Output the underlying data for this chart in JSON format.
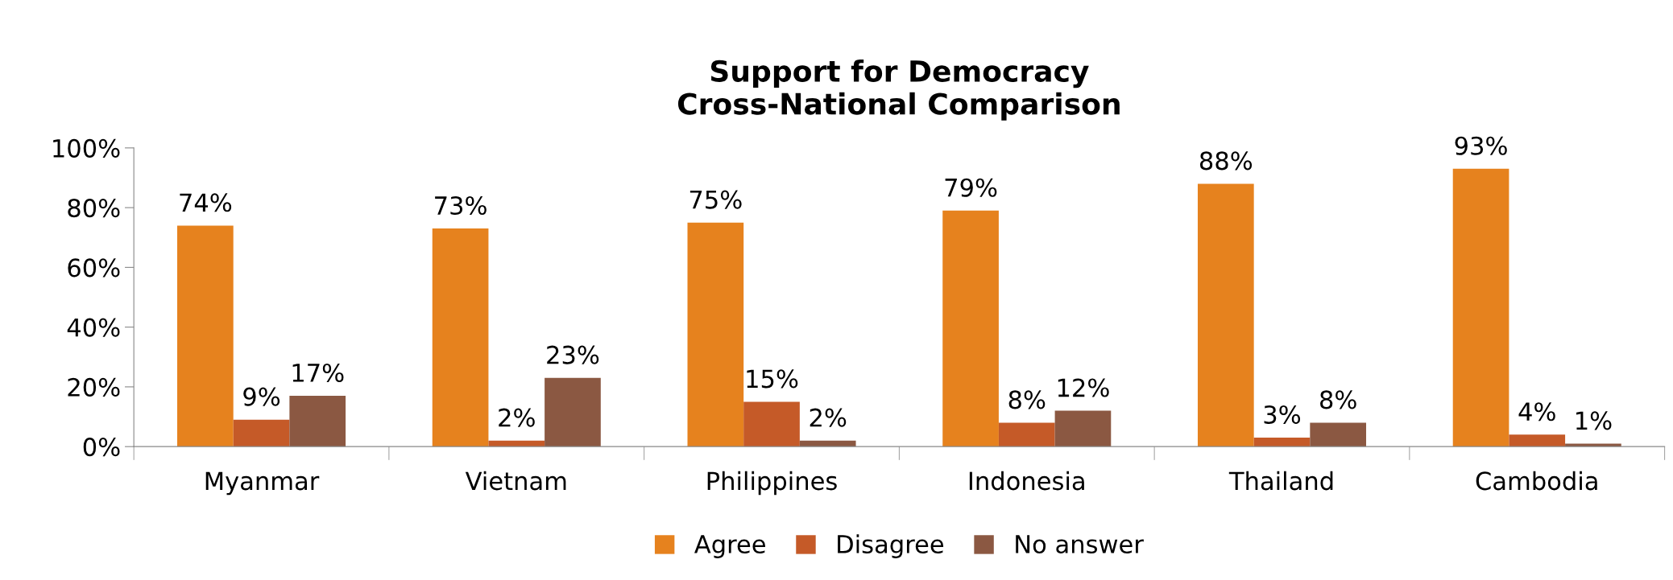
{
  "chart_data": {
    "type": "bar",
    "title": "Support for Democracy\nCross-National Comparison",
    "categories": [
      "Myanmar",
      "Vietnam",
      "Philippines",
      "Indonesia",
      "Thailand",
      "Cambodia"
    ],
    "series": [
      {
        "name": "Agree",
        "color": "#e6821e",
        "values": [
          74,
          73,
          75,
          79,
          88,
          93
        ],
        "value_labels": [
          "74%",
          "73%",
          "75%",
          "79%",
          "88%",
          "93%"
        ]
      },
      {
        "name": "Disagree",
        "color": "#c55a28",
        "values": [
          9,
          2,
          15,
          8,
          3,
          4
        ],
        "value_labels": [
          "9%",
          "2%",
          "15%",
          "8%",
          "3%",
          "4%"
        ]
      },
      {
        "name": "No answer",
        "color": "#8b5842",
        "values": [
          17,
          23,
          2,
          12,
          8,
          1
        ],
        "value_labels": [
          "17%",
          "23%",
          "2%",
          "12%",
          "8%",
          "1%"
        ]
      }
    ],
    "ylim": [
      0,
      100
    ],
    "yticks": [
      {
        "value": 0,
        "label": "0%"
      },
      {
        "value": 20,
        "label": "20%"
      },
      {
        "value": 40,
        "label": "40%"
      },
      {
        "value": 60,
        "label": "60%"
      },
      {
        "value": 80,
        "label": "80%"
      },
      {
        "value": 100,
        "label": "100%"
      }
    ],
    "grid": false,
    "legend": "bottom"
  }
}
